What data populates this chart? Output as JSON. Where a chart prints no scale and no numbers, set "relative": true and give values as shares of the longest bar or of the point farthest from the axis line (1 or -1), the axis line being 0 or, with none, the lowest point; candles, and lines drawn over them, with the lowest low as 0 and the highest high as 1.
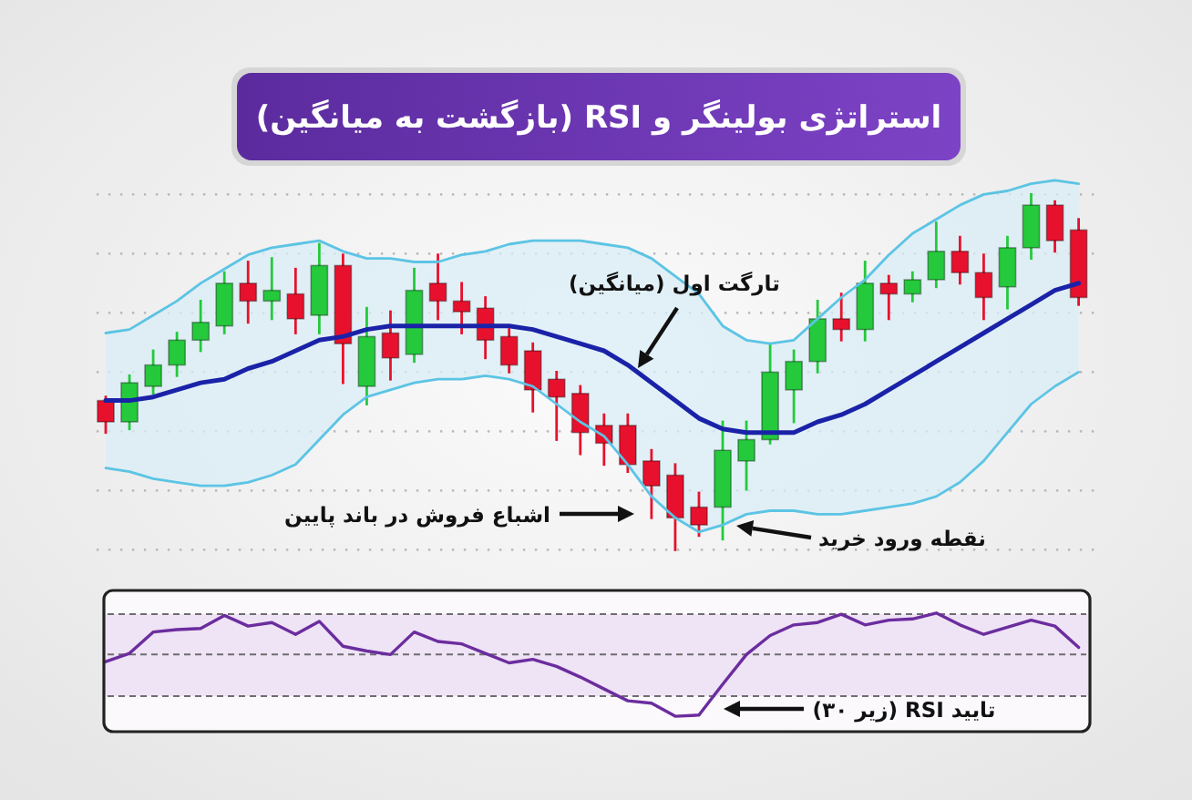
{
  "chart_data": [
    {
      "type": "candlestick",
      "title": "استراتژی بولینگر و RSI (بازگشت به میانگین)",
      "relative": true,
      "grid": "y",
      "categories": [
        null,
        null,
        null,
        null,
        null,
        null,
        null,
        null,
        null,
        null,
        null,
        null,
        null,
        null,
        null,
        null,
        null,
        null,
        null,
        null,
        null,
        null,
        null,
        null,
        null,
        null,
        null,
        null,
        null,
        null,
        null,
        null,
        null,
        null,
        null,
        null,
        null,
        null,
        null,
        null,
        null,
        null
      ],
      "ohlc": [
        [
          0.42,
          0.43,
          0.33,
          0.36
        ],
        [
          0.36,
          0.49,
          0.34,
          0.47
        ],
        [
          0.46,
          0.56,
          0.44,
          0.52
        ],
        [
          0.52,
          0.61,
          0.49,
          0.59
        ],
        [
          0.59,
          0.7,
          0.56,
          0.64
        ],
        [
          0.63,
          0.78,
          0.61,
          0.75
        ],
        [
          0.75,
          0.81,
          0.64,
          0.7
        ],
        [
          0.7,
          0.82,
          0.65,
          0.73
        ],
        [
          0.72,
          0.79,
          0.61,
          0.65
        ],
        [
          0.66,
          0.86,
          0.61,
          0.8
        ],
        [
          0.8,
          0.83,
          0.47,
          0.58
        ],
        [
          0.46,
          0.68,
          0.41,
          0.6
        ],
        [
          0.61,
          0.67,
          0.48,
          0.54
        ],
        [
          0.55,
          0.79,
          0.53,
          0.73
        ],
        [
          0.75,
          0.83,
          0.65,
          0.7
        ],
        [
          0.7,
          0.75,
          0.61,
          0.67
        ],
        [
          0.68,
          0.71,
          0.54,
          0.59
        ],
        [
          0.6,
          0.62,
          0.5,
          0.52
        ],
        [
          0.56,
          0.58,
          0.39,
          0.45
        ],
        [
          0.48,
          0.5,
          0.31,
          0.43
        ],
        [
          0.44,
          0.46,
          0.27,
          0.33
        ],
        [
          0.35,
          0.38,
          0.24,
          0.3
        ],
        [
          0.35,
          0.38,
          0.22,
          0.24
        ],
        [
          0.25,
          0.28,
          0.09,
          0.18
        ],
        [
          0.21,
          0.24,
          0,
          0.09
        ],
        [
          0.12,
          0.16,
          0.04,
          0.07
        ],
        [
          0.12,
          0.36,
          0.03,
          0.28
        ],
        [
          0.25,
          0.36,
          0.17,
          0.31
        ],
        [
          0.31,
          0.58,
          0.3,
          0.5
        ],
        [
          0.45,
          0.56,
          0.36,
          0.53
        ],
        [
          0.53,
          0.7,
          0.5,
          0.65
        ],
        [
          0.65,
          0.72,
          0.59,
          0.62
        ],
        [
          0.62,
          0.81,
          0.59,
          0.75
        ],
        [
          0.75,
          0.77,
          0.65,
          0.72
        ],
        [
          0.72,
          0.78,
          0.7,
          0.76
        ],
        [
          0.76,
          0.92,
          0.74,
          0.84
        ],
        [
          0.84,
          0.88,
          0.75,
          0.78
        ],
        [
          0.78,
          0.83,
          0.65,
          0.71
        ],
        [
          0.74,
          0.88,
          0.68,
          0.85
        ],
        [
          0.85,
          1,
          0.82,
          0.97
        ],
        [
          0.97,
          0.98,
          0.84,
          0.87
        ],
        [
          0.9,
          0.93,
          0.69,
          0.71
        ]
      ],
      "colors": [
        "#e8112d",
        "#24c93c",
        "#24c93c",
        "#24c93c",
        "#24c93c",
        "#24c93c",
        "#e8112d",
        "#24c93c",
        "#e8112d",
        "#24c93c",
        "#e8112d",
        "#24c93c",
        "#e8112d",
        "#24c93c",
        "#e8112d",
        "#e8112d",
        "#e8112d",
        "#e8112d",
        "#e8112d",
        "#e8112d",
        "#e8112d",
        "#e8112d",
        "#e8112d",
        "#e8112d",
        "#e8112d",
        "#e8112d",
        "#24c93c",
        "#24c93c",
        "#24c93c",
        "#24c93c",
        "#24c93c",
        "#e8112d",
        "#24c93c",
        "#e8112d",
        "#24c93c",
        "#24c93c",
        "#e8112d",
        "#e8112d",
        "#24c93c",
        "#24c93c",
        "#e8112d",
        "#e8112d"
      ],
      "series": [
        {
          "type": "line",
          "color": "#1a22a8",
          "values": [
            0.42,
            0.42,
            0.43,
            0.45,
            0.47,
            0.48,
            0.51,
            0.53,
            0.56,
            0.59,
            0.6,
            0.62,
            0.63,
            0.63,
            0.63,
            0.63,
            0.63,
            0.63,
            0.62,
            0.6,
            0.58,
            0.56,
            0.52,
            0.47,
            0.42,
            0.37,
            0.34,
            0.33,
            0.33,
            0.33,
            0.36,
            0.38,
            0.41,
            0.45,
            0.49,
            0.53,
            0.57,
            0.61,
            0.65,
            0.69,
            0.73,
            0.75
          ],
          "upper": [
            0.61,
            0.62,
            0.66,
            0.7,
            0.75,
            0.79,
            0.83,
            0.85,
            0.86,
            0.87,
            0.84,
            0.82,
            0.82,
            0.81,
            0.81,
            0.83,
            0.84,
            0.86,
            0.87,
            0.87,
            0.87,
            0.86,
            0.85,
            0.82,
            0.77,
            0.72,
            0.63,
            0.59,
            0.58,
            0.59,
            0.65,
            0.71,
            0.76,
            0.83,
            0.89,
            0.93,
            0.97,
            1.0,
            1.01,
            1.03,
            1.04,
            1.03
          ],
          "lower": [
            0.23,
            0.22,
            0.2,
            0.19,
            0.18,
            0.18,
            0.19,
            0.21,
            0.24,
            0.31,
            0.38,
            0.43,
            0.45,
            0.47,
            0.48,
            0.48,
            0.49,
            0.48,
            0.46,
            0.41,
            0.36,
            0.32,
            0.24,
            0.15,
            0.09,
            0.05,
            0.07,
            0.1,
            0.11,
            0.11,
            0.1,
            0.1,
            0.11,
            0.12,
            0.13,
            0.15,
            0.19,
            0.25,
            0.33,
            0.41,
            0.46,
            0.5
          ]
        },
        {
          "type": "line",
          "color": "#5cc4e4",
          "values": [
            0.61,
            0.62,
            0.66,
            0.7,
            0.75,
            0.79,
            0.83,
            0.85,
            0.86,
            0.87,
            0.84,
            0.82,
            0.82,
            0.81,
            0.81,
            0.83,
            0.84,
            0.86,
            0.87,
            0.87,
            0.87,
            0.86,
            0.85,
            0.82,
            0.77,
            0.72,
            0.63,
            0.59,
            0.58,
            0.59,
            0.65,
            0.71,
            0.76,
            0.83,
            0.89,
            0.93,
            0.97,
            1.0,
            1.01,
            1.03,
            1.04,
            1.03
          ]
        },
        {
          "type": "line",
          "color": "#5cc4e4",
          "values": [
            0.23,
            0.22,
            0.2,
            0.19,
            0.18,
            0.18,
            0.19,
            0.21,
            0.24,
            0.31,
            0.38,
            0.43,
            0.45,
            0.47,
            0.48,
            0.48,
            0.49,
            0.48,
            0.46,
            0.41,
            0.36,
            0.32,
            0.24,
            0.15,
            0.09,
            0.05,
            0.07,
            0.1,
            0.11,
            0.11,
            0.1,
            0.1,
            0.11,
            0.12,
            0.13,
            0.15,
            0.19,
            0.25,
            0.33,
            0.41,
            0.46,
            0.5
          ]
        }
      ],
      "annotations": [
        "تارگت اول (میانگین)",
        "اشباع فروش در باند پایین",
        "نقطه ورود خرید"
      ]
    },
    {
      "type": "line",
      "relative": true,
      "categories": [
        null,
        null,
        null,
        null,
        null,
        null,
        null,
        null,
        null,
        null,
        null,
        null,
        null,
        null,
        null,
        null,
        null,
        null,
        null,
        null,
        null,
        null,
        null,
        null,
        null,
        null,
        null,
        null,
        null,
        null,
        null,
        null,
        null,
        null,
        null,
        null,
        null,
        null,
        null,
        null,
        null,
        null
      ],
      "series": [
        {
          "color": "#6b2d9e",
          "values": [
            0.59,
            0.66,
            0.84,
            0.86,
            0.87,
            0.98,
            0.89,
            0.92,
            0.82,
            0.93,
            0.72,
            0.68,
            0.65,
            0.84,
            0.76,
            0.74,
            0.66,
            0.58,
            0.61,
            0.55,
            0.46,
            0.36,
            0.26,
            0.24,
            0.13,
            0.14,
            0.4,
            0.65,
            0.81,
            0.9,
            0.92,
            0.99,
            0.9,
            0.94,
            0.95,
            1,
            0.9,
            0.82,
            0.88,
            0.94,
            0.89,
            0.71
          ]
        }
      ],
      "ref_lines": [
        {
          "axis": "y",
          "value": 0.99,
          "color": "#6e6e6e",
          "line_style": "dashed"
        },
        {
          "axis": "y",
          "value": 0.65,
          "color": "#6e6e6e",
          "line_style": "dashed"
        },
        {
          "axis": "y",
          "value": 0.3,
          "color": "#6e6e6e",
          "line_style": "dashed"
        }
      ],
      "bands": [
        {
          "axis": "y",
          "from": 0.3,
          "to": 0.99,
          "color": "#efe3f6"
        }
      ],
      "annotations": [
        "تایید RSI (زیر ۳۰)"
      ]
    }
  ]
}
